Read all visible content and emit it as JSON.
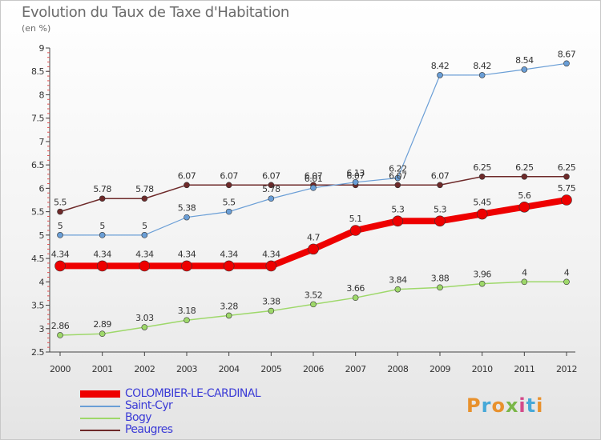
{
  "title": "Evolution du Taux de Taxe d'Habitation",
  "subtitle": "(en %)",
  "logo": {
    "text": "Proxiti",
    "colors": [
      "#e8912d",
      "#46a8d8",
      "#e8912d",
      "#7ab648",
      "#d44a8a",
      "#46a8d8",
      "#e8912d"
    ]
  },
  "chart_data": {
    "type": "line",
    "x": [
      "2000",
      "2001",
      "2002",
      "2003",
      "2004",
      "2005",
      "2006",
      "2007",
      "2008",
      "2009",
      "2010",
      "2011",
      "2012"
    ],
    "ylim": [
      2.5,
      9
    ],
    "yticks": [
      "2.5",
      "3",
      "3.5",
      "4",
      "4.5",
      "5",
      "5.5",
      "6",
      "6.5",
      "7",
      "7.5",
      "8",
      "8.5",
      "9"
    ],
    "series": [
      {
        "name": "Peaugres",
        "color": "#6e2a2a",
        "width": 1.5,
        "marker": 3.5,
        "values": [
          5.5,
          5.78,
          5.78,
          6.07,
          6.07,
          6.07,
          6.07,
          6.07,
          6.07,
          6.07,
          6.25,
          6.25,
          6.25
        ],
        "labels": [
          "5.5",
          "5.78",
          "5.78",
          "6.07",
          "6.07",
          "6.07",
          "6.07",
          "6.07",
          "6.07",
          "6.07",
          "6.25",
          "6.25",
          "6.25"
        ]
      },
      {
        "name": "Saint-Cyr",
        "color": "#6a9ed6",
        "width": 1.2,
        "marker": 3.5,
        "values": [
          5,
          5,
          5,
          5.38,
          5.5,
          5.78,
          6.01,
          6.13,
          6.22,
          8.42,
          8.42,
          8.54,
          8.67
        ],
        "labels": [
          "5",
          "5",
          "5",
          "5.38",
          "5.5",
          "5.78",
          "6.01",
          "6.13",
          "6.22",
          "8.42",
          "8.42",
          "8.54",
          "8.67"
        ]
      },
      {
        "name": "Bogy",
        "color": "#9ed86a",
        "width": 1.5,
        "marker": 3.5,
        "values": [
          2.86,
          2.89,
          3.03,
          3.18,
          3.28,
          3.38,
          3.52,
          3.66,
          3.84,
          3.88,
          3.96,
          4,
          4
        ],
        "labels": [
          "2.86",
          "2.89",
          "3.03",
          "3.18",
          "3.28",
          "3.38",
          "3.52",
          "3.66",
          "3.84",
          "3.88",
          "3.96",
          "4",
          "4"
        ]
      },
      {
        "name": "COLOMBIER-LE-CARDINAL",
        "color": "#ee0000",
        "width": 8,
        "marker": 6.5,
        "values": [
          4.34,
          4.34,
          4.34,
          4.34,
          4.34,
          4.34,
          4.7,
          5.1,
          5.3,
          5.3,
          5.45,
          5.6,
          5.75
        ],
        "labels": [
          "4.34",
          "4.34",
          "4.34",
          "4.34",
          "4.34",
          "4.34",
          "4.7",
          "5.1",
          "5.3",
          "5.3",
          "5.45",
          "5.6",
          "5.75"
        ]
      }
    ],
    "legend": [
      "COLOMBIER-LE-CARDINAL",
      "Saint-Cyr",
      "Bogy",
      "Peaugres"
    ],
    "legend_position": "bottom-left"
  }
}
